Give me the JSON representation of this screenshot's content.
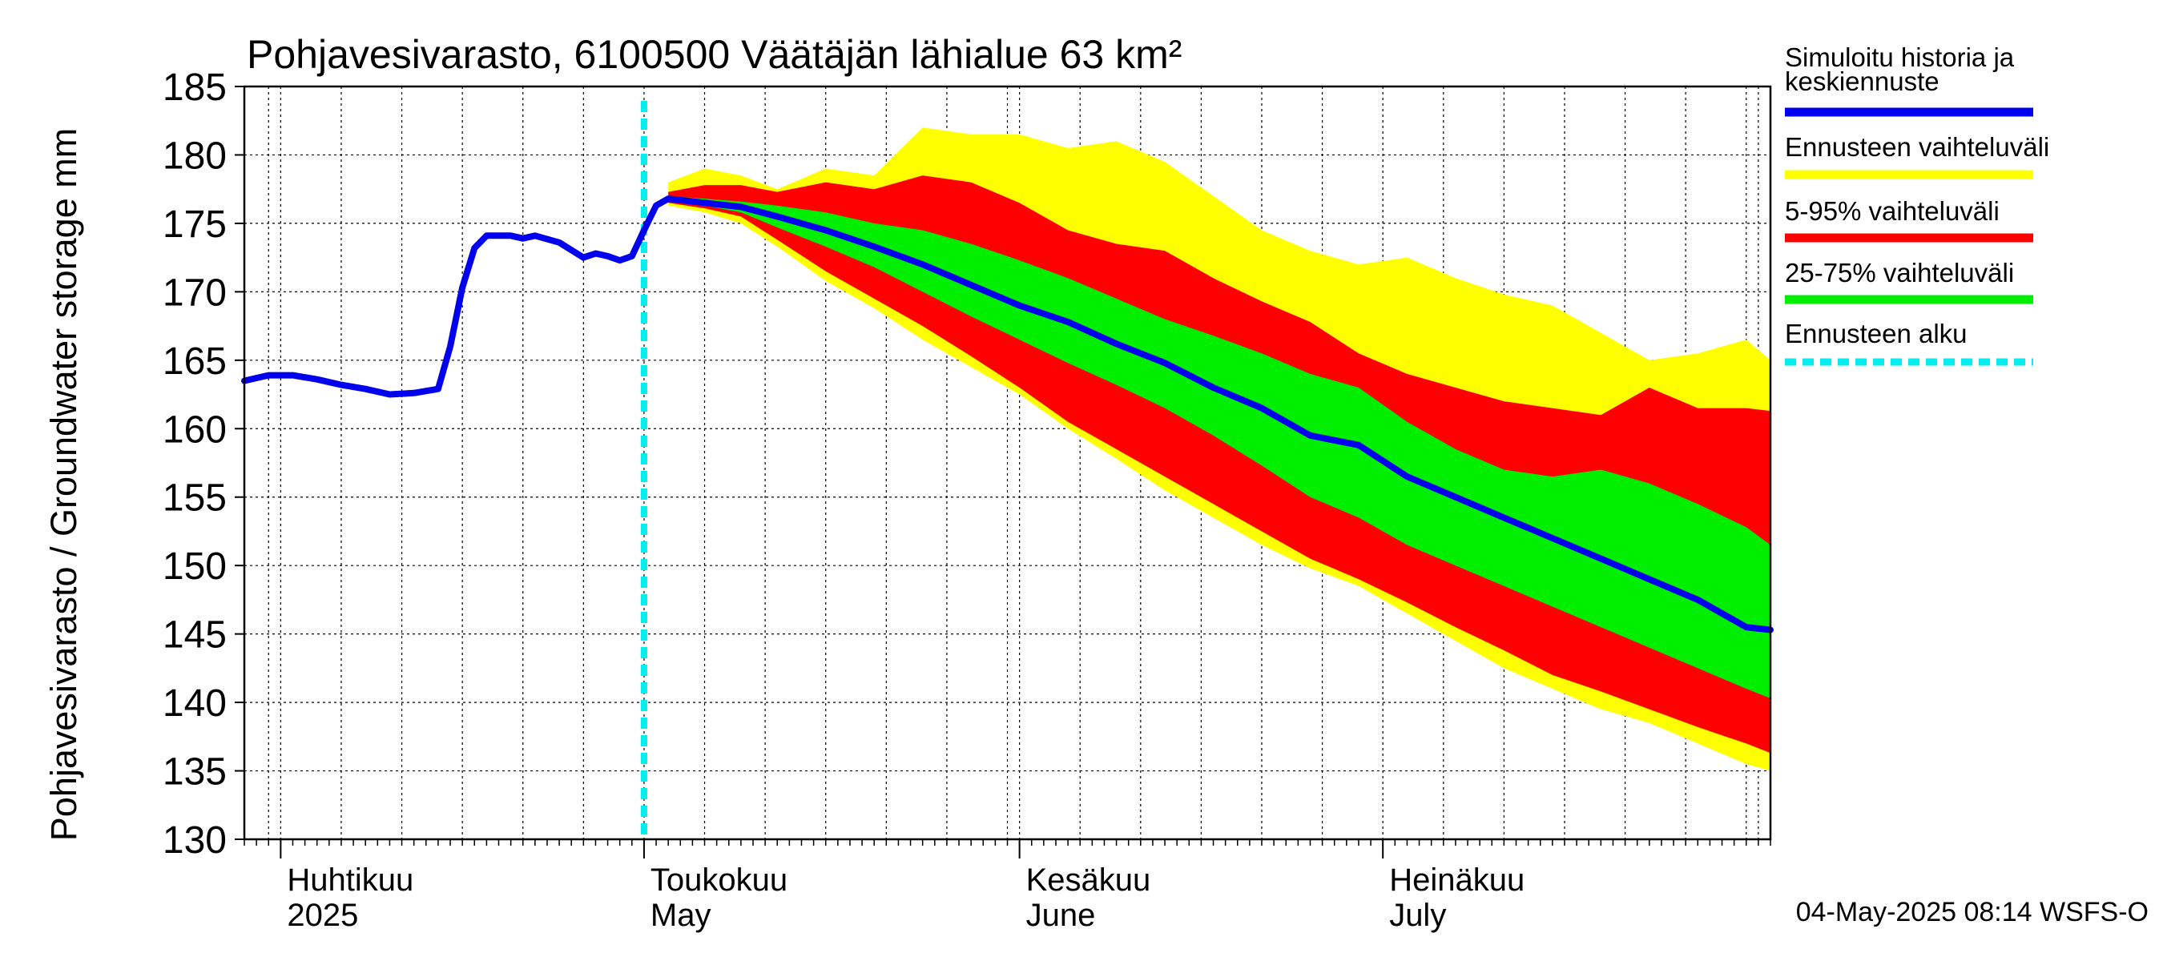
{
  "chart_data": {
    "type": "area",
    "title": "Pohjavesivarasto, 6100500 Väätäjän lähialue 63 km²",
    "ylabel": "Pohjavesivarasto / Groundwater storage   mm",
    "ylim": [
      130,
      185
    ],
    "yticks": [
      130,
      135,
      140,
      145,
      150,
      155,
      160,
      165,
      170,
      175,
      180,
      185
    ],
    "xlim": [
      "2025-03-29",
      "2025-08-02"
    ],
    "x_ticks": [
      {
        "date": "2025-04-01",
        "line1": "Huhtikuu",
        "line2": "2025"
      },
      {
        "date": "2025-05-01",
        "line1": "Toukokuu",
        "line2": "May"
      },
      {
        "date": "2025-06-01",
        "line1": "Kesäkuu",
        "line2": "June"
      },
      {
        "date": "2025-07-01",
        "line1": "Heinäkuu",
        "line2": "July"
      }
    ],
    "grid": true,
    "forecast_start": "2025-05-01",
    "footer": "04-May-2025 08:14 WSFS-O",
    "legend_position": "right",
    "legend": [
      {
        "line1": "Simuloitu historia ja",
        "line2": "keskiennuste",
        "color": "#0000ee",
        "style": "solid"
      },
      {
        "line1": "Ennusteen vaihteluväli",
        "line2": "",
        "color": "#ffff00",
        "style": "solid"
      },
      {
        "line1": "5-95% vaihteluväli",
        "line2": "",
        "color": "#ff0000",
        "style": "solid"
      },
      {
        "line1": "25-75% vaihteluväli",
        "line2": "",
        "color": "#00ee00",
        "style": "solid"
      },
      {
        "line1": "Ennusteen alku",
        "line2": "",
        "color": "#00eeee",
        "style": "dashed"
      }
    ],
    "history": {
      "name": "Simuloitu historia ja keskiennuste",
      "color": "#0000ee",
      "points": [
        [
          "2025-03-29",
          163.5
        ],
        [
          "2025-03-31",
          163.9
        ],
        [
          "2025-04-02",
          163.9
        ],
        [
          "2025-04-04",
          163.6
        ],
        [
          "2025-04-06",
          163.2
        ],
        [
          "2025-04-08",
          162.9
        ],
        [
          "2025-04-10",
          162.5
        ],
        [
          "2025-04-12",
          162.6
        ],
        [
          "2025-04-14",
          162.9
        ],
        [
          "2025-04-15",
          166.0
        ],
        [
          "2025-04-16",
          170.3
        ],
        [
          "2025-04-17",
          173.2
        ],
        [
          "2025-04-18",
          174.1
        ],
        [
          "2025-04-20",
          174.1
        ],
        [
          "2025-04-21",
          173.9
        ],
        [
          "2025-04-22",
          174.1
        ],
        [
          "2025-04-24",
          173.6
        ],
        [
          "2025-04-26",
          172.5
        ],
        [
          "2025-04-27",
          172.8
        ],
        [
          "2025-04-28",
          172.6
        ],
        [
          "2025-04-29",
          172.3
        ],
        [
          "2025-04-30",
          172.6
        ],
        [
          "2025-05-01",
          174.5
        ],
        [
          "2025-05-02",
          176.3
        ],
        [
          "2025-05-03",
          176.8
        ]
      ]
    },
    "forecast": {
      "dates": [
        "2025-05-03",
        "2025-05-06",
        "2025-05-09",
        "2025-05-12",
        "2025-05-16",
        "2025-05-20",
        "2025-05-24",
        "2025-05-28",
        "2025-06-01",
        "2025-06-05",
        "2025-06-09",
        "2025-06-13",
        "2025-06-17",
        "2025-06-21",
        "2025-06-25",
        "2025-06-29",
        "2025-07-03",
        "2025-07-07",
        "2025-07-11",
        "2025-07-15",
        "2025-07-19",
        "2025-07-23",
        "2025-07-27",
        "2025-07-31",
        "2025-08-02"
      ],
      "median": [
        176.8,
        176.5,
        176.2,
        175.5,
        174.5,
        173.3,
        172.0,
        170.5,
        169.0,
        167.8,
        166.2,
        164.8,
        163.0,
        161.5,
        159.5,
        158.8,
        156.5,
        155.0,
        153.5,
        152.0,
        150.5,
        149.0,
        147.5,
        145.5,
        145.3
      ],
      "p25": [
        176.6,
        176.3,
        175.8,
        174.7,
        173.3,
        171.8,
        170.0,
        168.2,
        166.5,
        164.8,
        163.2,
        161.5,
        159.5,
        157.3,
        155.0,
        153.5,
        151.5,
        150.0,
        148.5,
        147.0,
        145.5,
        144.0,
        142.5,
        141.0,
        140.3
      ],
      "p75": [
        177.0,
        176.8,
        176.6,
        176.3,
        175.8,
        175.0,
        174.5,
        173.5,
        172.3,
        171.0,
        169.5,
        168.0,
        166.8,
        165.5,
        164.0,
        163.0,
        160.5,
        158.5,
        157.0,
        156.5,
        157.0,
        156.0,
        154.5,
        152.8,
        151.5
      ],
      "p5": [
        176.5,
        176.1,
        175.5,
        173.8,
        171.5,
        169.5,
        167.5,
        165.3,
        163.0,
        160.5,
        158.5,
        156.5,
        154.5,
        152.5,
        150.5,
        149.0,
        147.3,
        145.5,
        143.8,
        142.0,
        140.8,
        139.5,
        138.2,
        137.0,
        136.3
      ],
      "p95": [
        177.3,
        177.8,
        177.8,
        177.3,
        178.0,
        177.5,
        178.5,
        178.0,
        176.5,
        174.5,
        173.5,
        173.0,
        171.0,
        169.3,
        167.8,
        165.5,
        164.0,
        163.0,
        162.0,
        161.5,
        161.0,
        163.0,
        161.5,
        161.5,
        161.3
      ],
      "min": [
        176.3,
        175.8,
        175.0,
        173.3,
        170.8,
        168.8,
        166.5,
        164.5,
        162.5,
        160.0,
        157.8,
        155.5,
        153.5,
        151.5,
        149.8,
        148.5,
        146.5,
        144.5,
        142.5,
        141.0,
        139.5,
        138.5,
        137.0,
        135.5,
        135.0
      ],
      "max": [
        178.0,
        179.0,
        178.5,
        177.5,
        179.0,
        178.5,
        182.0,
        181.5,
        181.5,
        180.5,
        181.0,
        179.5,
        177.0,
        174.5,
        173.0,
        172.0,
        172.5,
        171.0,
        169.8,
        169.0,
        167.0,
        165.0,
        165.5,
        166.5,
        165.0
      ]
    }
  }
}
